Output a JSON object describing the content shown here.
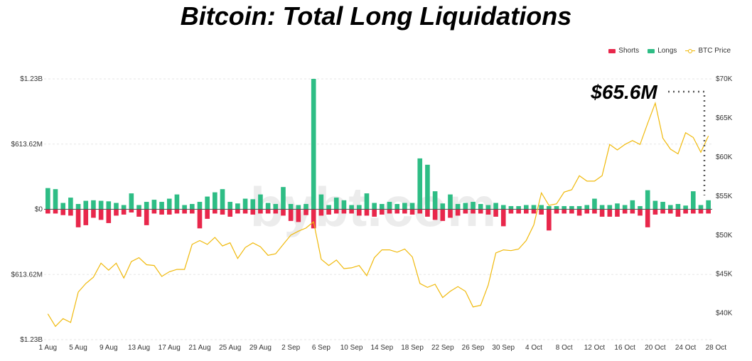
{
  "chart_data": {
    "type": "bar",
    "title": "Bitcoin: Total Long Liquidations",
    "watermark": "bybt.com",
    "annotation": "$65.6M",
    "legend": [
      "Shorts",
      "Longs",
      "BTC Price"
    ],
    "legend_position": "top-right",
    "colors": {
      "shorts": "#e8274b",
      "longs": "#2ebd85",
      "price": "#f0b90b"
    },
    "left_axis": {
      "ticks": [
        "$1.23B",
        "$613.62M",
        "$0",
        "$613.62M",
        "$1.23B"
      ],
      "range": [
        -1.23,
        1.23
      ],
      "unit": "B"
    },
    "right_axis": {
      "ticks": [
        "$70K",
        "$65K",
        "$60K",
        "$55K",
        "$50K",
        "$45K",
        "$40K"
      ],
      "range": [
        36.6,
        70
      ],
      "unit": "K"
    },
    "x_tick_labels": [
      "1 Aug",
      "5 Aug",
      "9 Aug",
      "13 Aug",
      "17 Aug",
      "21 Aug",
      "25 Aug",
      "29 Aug",
      "2 Sep",
      "6 Sep",
      "10 Sep",
      "14 Sep",
      "18 Sep",
      "22 Sep",
      "26 Sep",
      "30 Sep",
      "4 Oct",
      "8 Oct",
      "12 Oct",
      "16 Oct",
      "20 Oct",
      "24 Oct",
      "28 Oct"
    ],
    "x_start": "2021-08-01",
    "x_end": "2021-10-29",
    "longs_millions": [
      200,
      190,
      60,
      110,
      50,
      80,
      85,
      80,
      75,
      60,
      40,
      150,
      40,
      70,
      90,
      70,
      100,
      140,
      40,
      50,
      70,
      120,
      160,
      190,
      70,
      55,
      100,
      95,
      140,
      60,
      50,
      210,
      50,
      40,
      50,
      1230,
      140,
      40,
      110,
      85,
      40,
      40,
      150,
      60,
      50,
      70,
      50,
      60,
      60,
      480,
      420,
      170,
      55,
      140,
      50,
      60,
      70,
      50,
      40,
      60,
      40,
      30,
      30,
      40,
      40,
      40,
      30,
      30,
      30,
      30,
      30,
      40,
      100,
      40,
      40,
      55,
      40,
      85,
      30,
      180,
      80,
      70,
      40,
      50,
      35,
      170,
      40,
      85
    ],
    "shorts_millions": [
      40,
      40,
      55,
      60,
      170,
      150,
      80,
      100,
      130,
      60,
      50,
      30,
      70,
      150,
      40,
      50,
      50,
      40,
      40,
      40,
      180,
      90,
      40,
      50,
      70,
      40,
      40,
      50,
      40,
      40,
      40,
      60,
      110,
      120,
      55,
      180,
      60,
      50,
      40,
      40,
      40,
      60,
      60,
      70,
      50,
      40,
      40,
      40,
      50,
      40,
      70,
      100,
      110,
      80,
      60,
      40,
      40,
      40,
      50,
      70,
      160,
      40,
      40,
      40,
      40,
      50,
      200,
      40,
      40,
      40,
      60,
      40,
      40,
      70,
      70,
      70,
      40,
      40,
      60,
      170,
      50,
      40,
      40,
      70,
      40,
      40,
      40,
      40
    ],
    "btc_price_k": [
      39.9,
      38.3,
      39.3,
      38.8,
      42.7,
      43.8,
      44.6,
      46.4,
      45.5,
      46.4,
      44.5,
      46.6,
      47.1,
      46.2,
      46.1,
      44.7,
      45.3,
      45.6,
      45.6,
      48.8,
      49.3,
      48.8,
      49.7,
      48.6,
      49.0,
      47.0,
      48.4,
      49.0,
      48.5,
      47.4,
      47.6,
      48.8,
      50.0,
      50.5,
      50.9,
      51.7,
      46.9,
      46.1,
      46.8,
      45.7,
      45.8,
      46.1,
      44.8,
      47.1,
      48.1,
      48.1,
      47.8,
      48.2,
      47.2,
      43.8,
      43.3,
      43.7,
      42.0,
      42.8,
      43.4,
      42.8,
      40.8,
      41.0,
      43.6,
      47.7,
      48.1,
      48.0,
      48.2,
      49.3,
      51.3,
      55.4,
      53.8,
      54.0,
      55.5,
      55.8,
      57.6,
      56.9,
      56.9,
      57.6,
      61.6,
      60.9,
      61.6,
      62.1,
      61.6,
      64.3,
      66.9,
      62.4,
      61.0,
      60.4,
      63.1,
      62.5,
      60.6,
      62.7
    ]
  }
}
